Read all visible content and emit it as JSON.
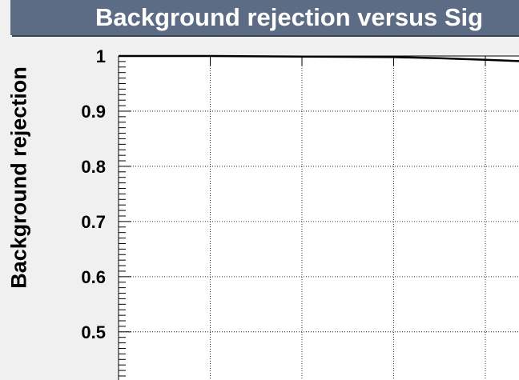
{
  "chart_data": {
    "type": "line",
    "title": "Background rejection versus Sig",
    "ylabel": "Background rejection",
    "xlabel": "",
    "grid": true,
    "ylim": [
      0.4,
      1.0
    ],
    "xlim": [
      0.0,
      1.0
    ],
    "yticks": [
      "1",
      "0.9",
      "0.8",
      "0.7",
      "0.6",
      "0.5"
    ],
    "series": [
      {
        "x": [
          0.0,
          0.1,
          0.2,
          0.3,
          0.35,
          0.4,
          0.45,
          0.48,
          0.5
        ],
        "y": [
          1.0,
          1.0,
          0.999,
          0.998,
          0.996,
          0.993,
          0.99,
          0.987,
          0.984
        ]
      }
    ]
  }
}
